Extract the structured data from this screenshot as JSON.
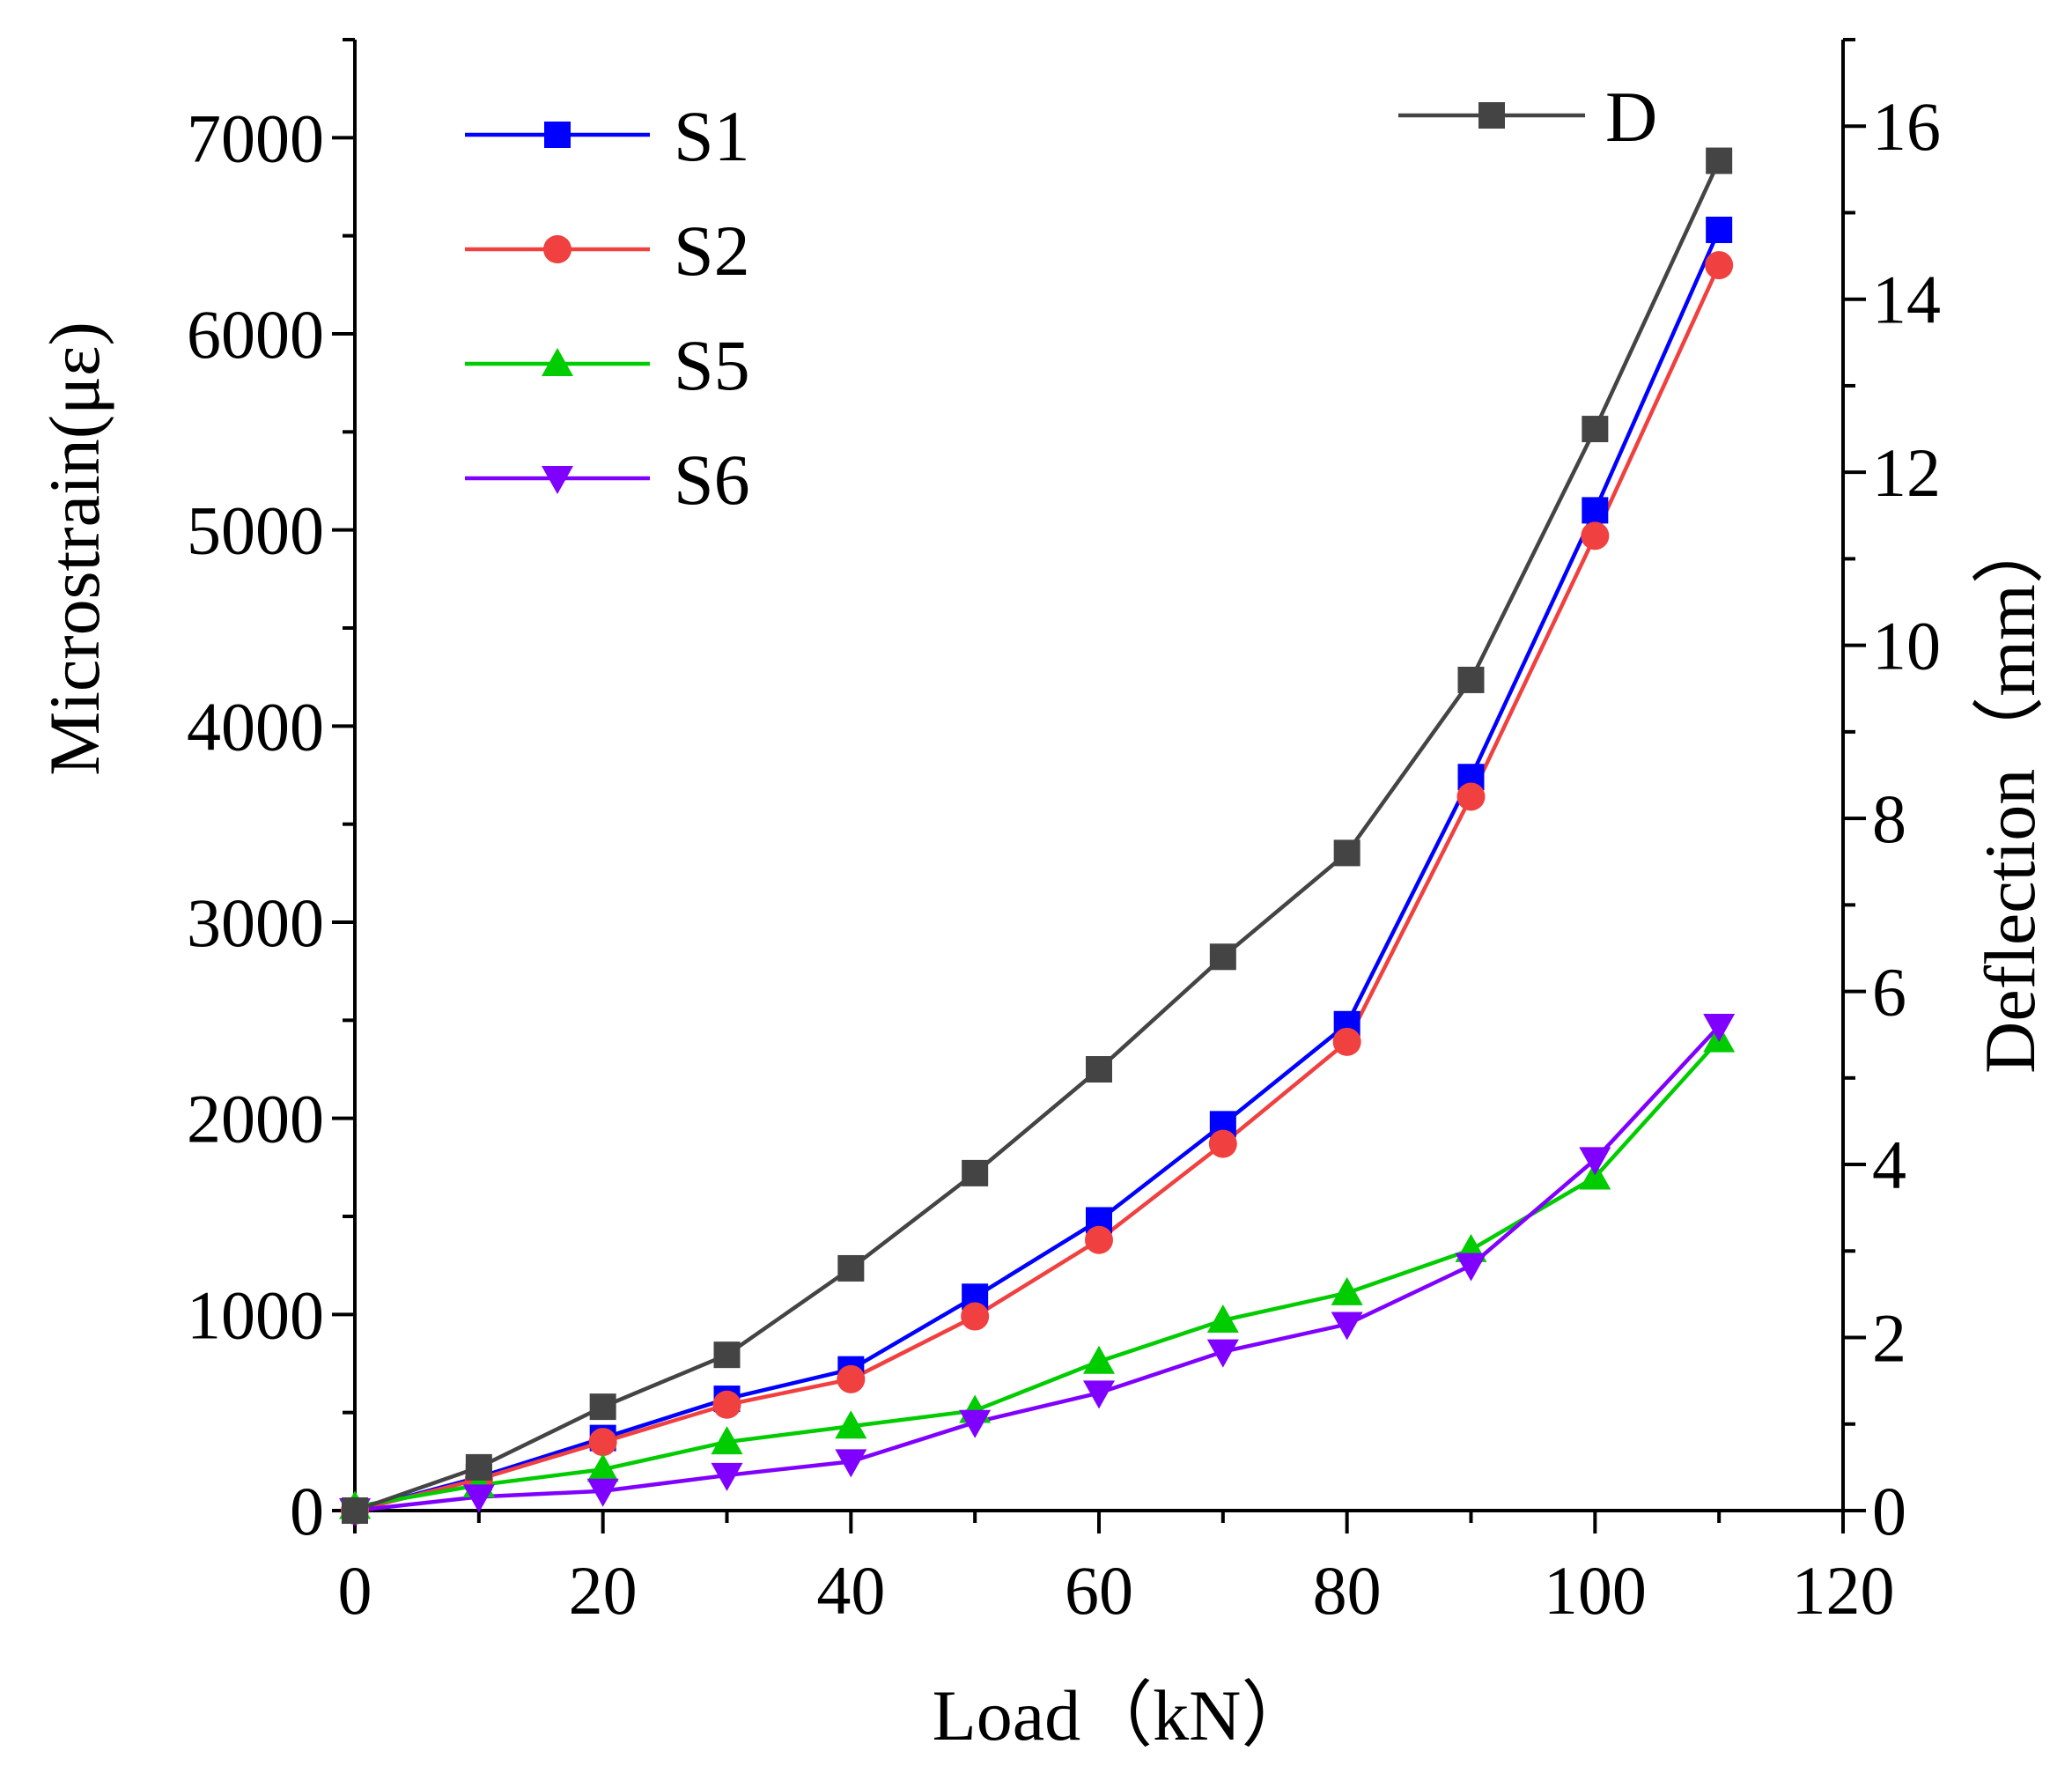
{
  "chart_data": {
    "type": "line",
    "title": "",
    "xlabel": "Load（kN）",
    "ylabel": "Microstrain(με)",
    "y2label": "Deflection（mm）",
    "xlim": [
      0,
      120
    ],
    "ylim": [
      0,
      7500
    ],
    "y2lim": [
      0,
      17
    ],
    "xticks": [
      "0",
      "20",
      "40",
      "60",
      "80",
      "100",
      "120"
    ],
    "yticks": [
      "0",
      "1000",
      "2000",
      "3000",
      "4000",
      "5000",
      "6000",
      "7000"
    ],
    "y2ticks": [
      "0",
      "2",
      "4",
      "6",
      "8",
      "10",
      "12",
      "14",
      "16"
    ],
    "grid": false,
    "legend_left": "top-left",
    "legend_right": "top-right",
    "x": [
      0,
      10,
      20,
      30,
      40,
      50,
      60,
      70,
      80,
      90,
      100,
      110
    ],
    "series": [
      {
        "name": "S1",
        "axis": "left",
        "color": "#0000ff",
        "marker": "square",
        "values": [
          0,
          170,
          370,
          570,
          720,
          1090,
          1480,
          1970,
          2480,
          3740,
          5100,
          6530
        ]
      },
      {
        "name": "S2",
        "axis": "left",
        "color": "#f04040",
        "marker": "circle",
        "values": [
          0,
          160,
          350,
          540,
          670,
          990,
          1380,
          1870,
          2390,
          3640,
          4970,
          6350
        ]
      },
      {
        "name": "S5",
        "axis": "left",
        "color": "#00cc00",
        "marker": "triangle-up",
        "values": [
          20,
          130,
          210,
          350,
          430,
          510,
          760,
          970,
          1110,
          1330,
          1700,
          2400
        ]
      },
      {
        "name": "S6",
        "axis": "left",
        "color": "#8000ff",
        "marker": "triangle-down",
        "values": [
          0,
          70,
          100,
          180,
          250,
          450,
          600,
          810,
          950,
          1250,
          1790,
          2470
        ]
      },
      {
        "name": "D",
        "axis": "right",
        "color": "#444444",
        "marker": "square",
        "values": [
          0,
          0.5,
          1.2,
          1.8,
          2.8,
          3.9,
          5.1,
          6.4,
          7.6,
          9.6,
          12.5,
          15.6
        ]
      }
    ]
  }
}
